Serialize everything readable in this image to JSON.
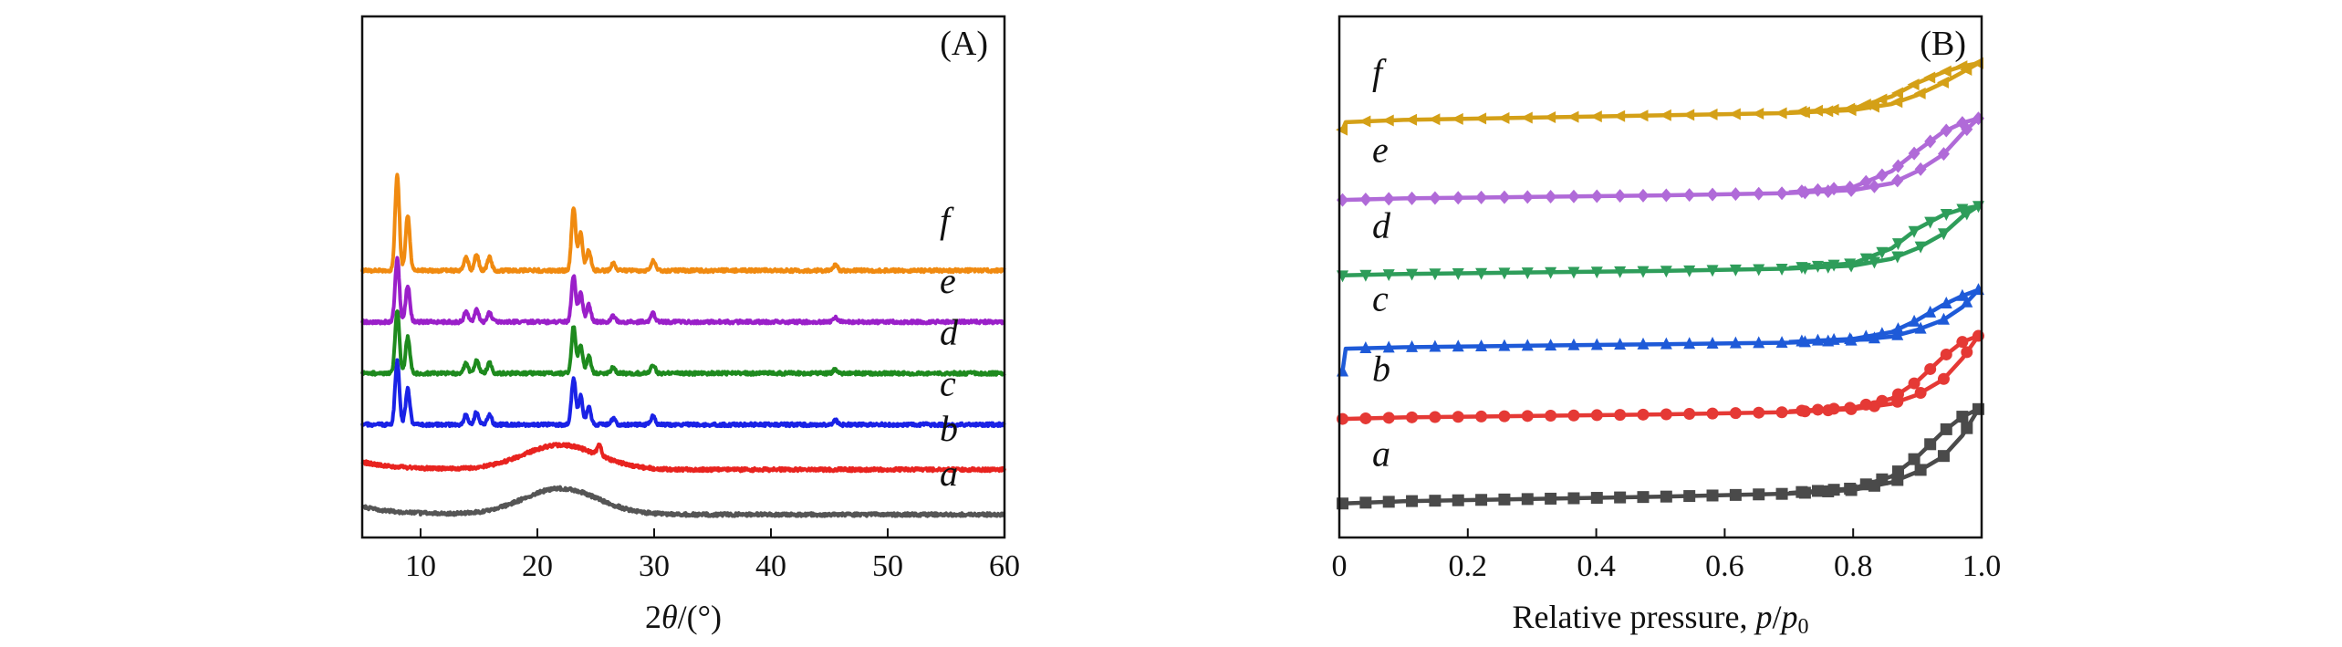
{
  "chart_data": [
    {
      "type": "line",
      "panel_label": "(A)",
      "xlabel_parts": [
        "2",
        "θ",
        "/(°)"
      ],
      "xlim": [
        5,
        60
      ],
      "xticks": [
        10,
        20,
        30,
        40,
        50,
        60
      ],
      "ylabel": "",
      "y_ticks_visible": false,
      "grid": false,
      "series": [
        {
          "name": "a",
          "color": "#555555",
          "baseline": 0.3,
          "amorphous_hump": {
            "center": 22,
            "height": 0.9,
            "width": 3.2
          },
          "peaks": []
        },
        {
          "name": "b",
          "color": "#e8231f",
          "baseline": 1.0,
          "amorphous_hump": {
            "center": 22,
            "height": 0.85,
            "width": 3.2
          },
          "peaks": [
            {
              "x": 25.3,
              "h": 0.35
            }
          ]
        },
        {
          "name": "c",
          "color": "#1a22e6",
          "baseline": 1.7,
          "peaks": [
            {
              "x": 8.0,
              "h": 2.2
            },
            {
              "x": 8.9,
              "h": 1.25
            },
            {
              "x": 13.9,
              "h": 0.35
            },
            {
              "x": 14.8,
              "h": 0.45
            },
            {
              "x": 15.9,
              "h": 0.35
            },
            {
              "x": 23.1,
              "h": 1.6
            },
            {
              "x": 23.7,
              "h": 1.0
            },
            {
              "x": 24.4,
              "h": 0.6
            },
            {
              "x": 26.5,
              "h": 0.2
            },
            {
              "x": 29.9,
              "h": 0.3
            },
            {
              "x": 45.5,
              "h": 0.15
            }
          ]
        },
        {
          "name": "d",
          "color": "#1e8a1e",
          "baseline": 2.5,
          "peaks": [
            {
              "x": 8.0,
              "h": 2.2
            },
            {
              "x": 8.9,
              "h": 1.25
            },
            {
              "x": 13.9,
              "h": 0.35
            },
            {
              "x": 14.8,
              "h": 0.45
            },
            {
              "x": 15.9,
              "h": 0.35
            },
            {
              "x": 23.1,
              "h": 1.6
            },
            {
              "x": 23.7,
              "h": 1.0
            },
            {
              "x": 24.4,
              "h": 0.6
            },
            {
              "x": 26.5,
              "h": 0.2
            },
            {
              "x": 29.9,
              "h": 0.3
            },
            {
              "x": 45.5,
              "h": 0.15
            }
          ]
        },
        {
          "name": "e",
          "color": "#9a1fc9",
          "baseline": 3.3,
          "peaks": [
            {
              "x": 8.0,
              "h": 2.2
            },
            {
              "x": 8.9,
              "h": 1.25
            },
            {
              "x": 13.9,
              "h": 0.35
            },
            {
              "x": 14.8,
              "h": 0.45
            },
            {
              "x": 15.9,
              "h": 0.35
            },
            {
              "x": 23.1,
              "h": 1.6
            },
            {
              "x": 23.7,
              "h": 1.0
            },
            {
              "x": 24.4,
              "h": 0.6
            },
            {
              "x": 26.5,
              "h": 0.2
            },
            {
              "x": 29.9,
              "h": 0.3
            },
            {
              "x": 45.5,
              "h": 0.15
            }
          ]
        },
        {
          "name": "f",
          "color": "#f08a10",
          "baseline": 4.1,
          "peaks": [
            {
              "x": 8.0,
              "h": 3.3
            },
            {
              "x": 8.9,
              "h": 1.9
            },
            {
              "x": 13.9,
              "h": 0.45
            },
            {
              "x": 14.8,
              "h": 0.55
            },
            {
              "x": 15.9,
              "h": 0.45
            },
            {
              "x": 23.1,
              "h": 2.2
            },
            {
              "x": 23.7,
              "h": 1.3
            },
            {
              "x": 24.4,
              "h": 0.7
            },
            {
              "x": 26.5,
              "h": 0.25
            },
            {
              "x": 29.9,
              "h": 0.35
            },
            {
              "x": 45.5,
              "h": 0.2
            }
          ]
        }
      ],
      "curve_labels": [
        "a",
        "b",
        "c",
        "d",
        "e",
        "f"
      ],
      "ylim": [
        0,
        8
      ]
    },
    {
      "type": "line",
      "panel_label": "(B)",
      "xlabel_parts": [
        "Relative pressure, ",
        "p",
        "/",
        "p",
        "0"
      ],
      "xlim": [
        0,
        1.0
      ],
      "xticks": [
        "0",
        "0.2",
        "0.4",
        "0.6",
        "0.8",
        "1.0"
      ],
      "xtick_values": [
        0,
        0.2,
        0.4,
        0.6,
        0.8,
        1.0
      ],
      "ylabel": "",
      "y_ticks_visible": false,
      "grid": false,
      "series": [
        {
          "name": "a",
          "color": "#4a4a4a",
          "marker": "square",
          "offset": 0.0,
          "adsorption": [
            [
              0.005,
              0.0
            ],
            [
              0.1,
              0.03
            ],
            [
              0.3,
              0.06
            ],
            [
              0.5,
              0.09
            ],
            [
              0.7,
              0.13
            ],
            [
              0.8,
              0.18
            ],
            [
              0.86,
              0.28
            ],
            [
              0.9,
              0.42
            ],
            [
              0.94,
              0.62
            ],
            [
              0.97,
              0.9
            ],
            [
              0.995,
              1.25
            ]
          ],
          "desorption": [
            [
              0.995,
              1.25
            ],
            [
              0.97,
              1.15
            ],
            [
              0.94,
              0.95
            ],
            [
              0.9,
              0.62
            ],
            [
              0.86,
              0.36
            ],
            [
              0.8,
              0.2
            ],
            [
              0.7,
              0.14
            ]
          ]
        },
        {
          "name": "b",
          "color": "#e53935",
          "marker": "circle",
          "offset": 1.12,
          "adsorption": [
            [
              0.005,
              0.0
            ],
            [
              0.1,
              0.02
            ],
            [
              0.3,
              0.04
            ],
            [
              0.5,
              0.06
            ],
            [
              0.7,
              0.09
            ],
            [
              0.8,
              0.13
            ],
            [
              0.86,
              0.2
            ],
            [
              0.9,
              0.32
            ],
            [
              0.94,
              0.52
            ],
            [
              0.97,
              0.8
            ],
            [
              0.995,
              1.1
            ]
          ],
          "desorption": [
            [
              0.995,
              1.1
            ],
            [
              0.97,
              1.02
            ],
            [
              0.94,
              0.82
            ],
            [
              0.9,
              0.5
            ],
            [
              0.86,
              0.27
            ],
            [
              0.8,
              0.15
            ],
            [
              0.7,
              0.1
            ]
          ]
        },
        {
          "name": "c",
          "color": "#1e5ad8",
          "marker": "triangle-up",
          "offset": 2.05,
          "adsorption": [
            [
              0.005,
              -0.3
            ],
            [
              0.01,
              0.0
            ],
            [
              0.1,
              0.02
            ],
            [
              0.3,
              0.04
            ],
            [
              0.5,
              0.06
            ],
            [
              0.7,
              0.08
            ],
            [
              0.8,
              0.11
            ],
            [
              0.86,
              0.16
            ],
            [
              0.9,
              0.25
            ],
            [
              0.94,
              0.38
            ],
            [
              0.97,
              0.55
            ],
            [
              0.995,
              0.78
            ]
          ],
          "desorption": [
            [
              0.995,
              0.78
            ],
            [
              0.97,
              0.7
            ],
            [
              0.94,
              0.58
            ],
            [
              0.9,
              0.38
            ],
            [
              0.86,
              0.22
            ],
            [
              0.8,
              0.13
            ],
            [
              0.7,
              0.09
            ]
          ]
        },
        {
          "name": "d",
          "color": "#2e9d5a",
          "marker": "triangle-down",
          "offset": 3.02,
          "adsorption": [
            [
              0.005,
              0.0
            ],
            [
              0.1,
              0.02
            ],
            [
              0.3,
              0.04
            ],
            [
              0.5,
              0.06
            ],
            [
              0.7,
              0.09
            ],
            [
              0.8,
              0.13
            ],
            [
              0.86,
              0.22
            ],
            [
              0.9,
              0.36
            ],
            [
              0.94,
              0.55
            ],
            [
              0.97,
              0.78
            ],
            [
              0.995,
              0.92
            ]
          ],
          "desorption": [
            [
              0.995,
              0.92
            ],
            [
              0.97,
              0.88
            ],
            [
              0.94,
              0.8
            ],
            [
              0.9,
              0.62
            ],
            [
              0.86,
              0.36
            ],
            [
              0.8,
              0.16
            ],
            [
              0.7,
              0.1
            ]
          ]
        },
        {
          "name": "e",
          "color": "#b06ad8",
          "marker": "diamond",
          "offset": 4.02,
          "adsorption": [
            [
              0.005,
              0.0
            ],
            [
              0.1,
              0.02
            ],
            [
              0.3,
              0.04
            ],
            [
              0.5,
              0.06
            ],
            [
              0.7,
              0.09
            ],
            [
              0.8,
              0.13
            ],
            [
              0.86,
              0.22
            ],
            [
              0.9,
              0.38
            ],
            [
              0.94,
              0.6
            ],
            [
              0.97,
              0.88
            ],
            [
              0.995,
              1.08
            ]
          ],
          "desorption": [
            [
              0.995,
              1.08
            ],
            [
              0.97,
              1.02
            ],
            [
              0.94,
              0.9
            ],
            [
              0.9,
              0.65
            ],
            [
              0.86,
              0.38
            ],
            [
              0.8,
              0.17
            ],
            [
              0.7,
              0.1
            ]
          ]
        },
        {
          "name": "f",
          "color": "#d4a017",
          "marker": "triangle-left",
          "offset": 5.05,
          "adsorption": [
            [
              0.005,
              -0.1
            ],
            [
              0.01,
              0.0
            ],
            [
              0.1,
              0.03
            ],
            [
              0.3,
              0.06
            ],
            [
              0.5,
              0.09
            ],
            [
              0.7,
              0.12
            ],
            [
              0.8,
              0.16
            ],
            [
              0.86,
              0.24
            ],
            [
              0.9,
              0.36
            ],
            [
              0.94,
              0.52
            ],
            [
              0.97,
              0.66
            ],
            [
              0.995,
              0.78
            ]
          ],
          "desorption": [
            [
              0.995,
              0.78
            ],
            [
              0.97,
              0.74
            ],
            [
              0.94,
              0.66
            ],
            [
              0.9,
              0.52
            ],
            [
              0.86,
              0.34
            ],
            [
              0.8,
              0.18
            ],
            [
              0.7,
              0.13
            ]
          ]
        }
      ],
      "curve_labels": [
        "a",
        "b",
        "c",
        "d",
        "e",
        "f"
      ],
      "ylim": [
        -0.45,
        6.45
      ]
    }
  ]
}
